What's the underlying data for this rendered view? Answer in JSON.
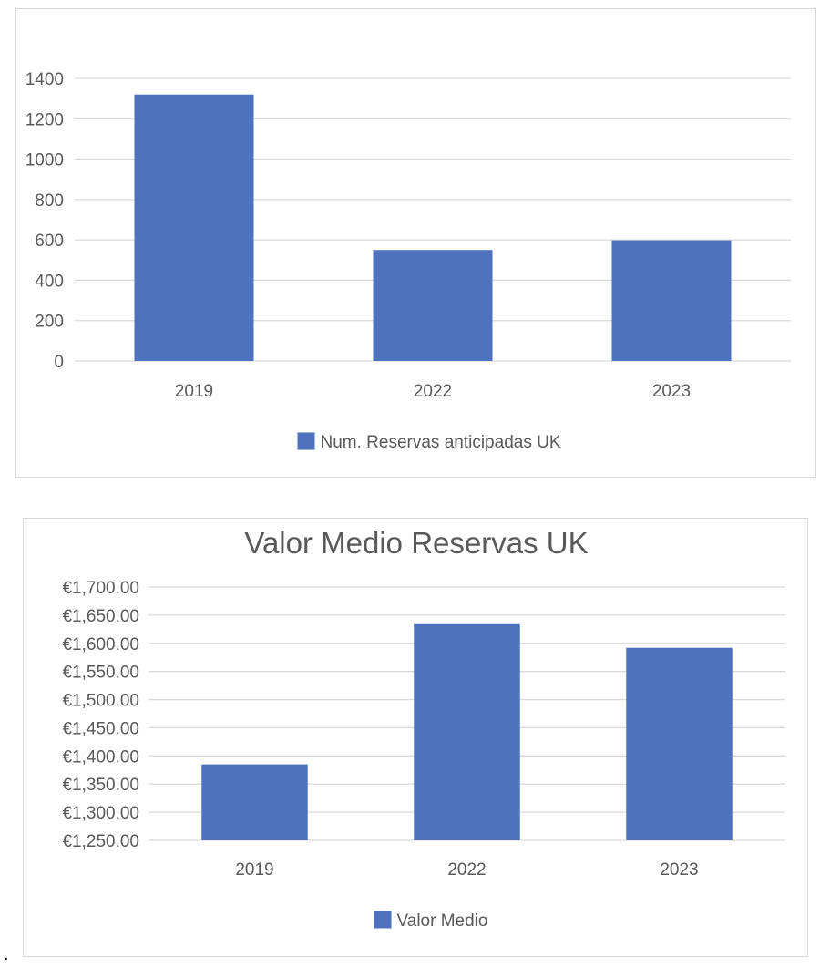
{
  "colors": {
    "bar": "#4e72be",
    "grid": "#d9d9d9",
    "text": "#595959"
  },
  "chart_data": [
    {
      "type": "bar",
      "title": "",
      "categories": [
        "2019",
        "2022",
        "2023"
      ],
      "series": [
        {
          "name": "Num. Reservas anticipadas UK",
          "values": [
            1320,
            550,
            598
          ]
        }
      ],
      "ylim": [
        0,
        1400
      ],
      "yticks": [
        0,
        200,
        400,
        600,
        800,
        1000,
        1200,
        1400
      ],
      "ytick_labels": [
        "0",
        "200",
        "400",
        "600",
        "800",
        "1000",
        "1200",
        "1400"
      ],
      "grid": true,
      "legend": "bottom-center"
    },
    {
      "type": "bar",
      "title": "Valor Medio Reservas UK",
      "categories": [
        "2019",
        "2022",
        "2023"
      ],
      "series": [
        {
          "name": "Valor Medio",
          "values": [
            1385,
            1634,
            1592
          ]
        }
      ],
      "ylim": [
        1250,
        1700
      ],
      "yticks": [
        1250,
        1300,
        1350,
        1400,
        1450,
        1500,
        1550,
        1600,
        1650,
        1700
      ],
      "ytick_labels": [
        "€1,250.00",
        "€1,300.00",
        "€1,350.00",
        "€1,400.00",
        "€1,450.00",
        "€1,500.00",
        "€1,550.00",
        "€1,600.00",
        "€1,650.00",
        "€1,700.00"
      ],
      "grid": true,
      "legend": "bottom-center"
    }
  ],
  "footer": {
    "text": "."
  }
}
